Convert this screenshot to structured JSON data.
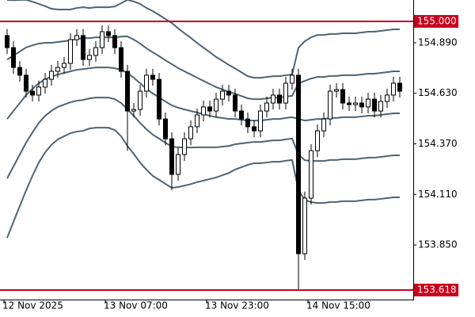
{
  "chart_data": {
    "type": "candlestick",
    "categories": [
      "12 Nov 2025",
      null,
      null,
      null,
      null,
      null,
      null,
      null,
      null,
      null,
      null,
      null,
      null,
      null,
      null,
      null,
      "13 Nov 07:00",
      null,
      null,
      null,
      null,
      null,
      null,
      null,
      null,
      null,
      null,
      null,
      null,
      null,
      null,
      null,
      "13 Nov 23:00",
      null,
      null,
      null,
      null,
      null,
      null,
      null,
      null,
      null,
      null,
      null,
      null,
      null,
      null,
      null,
      "14 Nov 15:00",
      null,
      null,
      null,
      null,
      null,
      null,
      null,
      null,
      null,
      null,
      null,
      null,
      null,
      null
    ],
    "open": [
      154.927,
      154.865,
      154.763,
      154.723,
      154.641,
      154.621,
      154.662,
      154.702,
      154.743,
      154.763,
      154.784,
      154.906,
      154.927,
      154.804,
      154.825,
      154.865,
      154.947,
      154.927,
      154.865,
      154.743,
      154.539,
      154.547,
      154.641,
      154.723,
      154.702,
      154.498,
      154.396,
      154.213,
      154.315,
      154.396,
      154.458,
      154.519,
      154.56,
      154.539,
      154.6,
      154.641,
      154.621,
      154.539,
      154.498,
      154.458,
      154.437,
      154.539,
      154.58,
      154.621,
      154.58,
      154.682,
      154.723,
      153.805,
      154.091,
      154.335,
      154.437,
      154.498,
      154.641,
      154.649,
      154.58,
      154.572,
      154.58,
      154.56,
      154.6,
      154.539,
      154.588,
      154.621,
      154.682
    ],
    "high": [
      154.96,
      154.898,
      154.796,
      154.756,
      154.674,
      154.695,
      154.735,
      154.776,
      154.796,
      154.817,
      154.939,
      154.96,
      154.96,
      154.858,
      154.898,
      154.98,
      154.98,
      154.96,
      154.898,
      154.776,
      154.58,
      154.674,
      154.756,
      154.756,
      154.735,
      154.531,
      154.429,
      154.348,
      154.429,
      154.491,
      154.552,
      154.593,
      154.593,
      154.633,
      154.674,
      154.674,
      154.654,
      154.572,
      154.531,
      154.491,
      154.572,
      154.613,
      154.654,
      154.654,
      154.715,
      154.756,
      154.756,
      154.124,
      154.368,
      154.47,
      154.531,
      154.674,
      154.682,
      154.682,
      154.613,
      154.613,
      154.613,
      154.633,
      154.633,
      154.621,
      154.654,
      154.715,
      154.715
    ],
    "low": [
      154.832,
      154.73,
      154.69,
      154.608,
      154.588,
      154.588,
      154.629,
      154.669,
      154.71,
      154.73,
      154.751,
      154.873,
      154.771,
      154.771,
      154.792,
      154.832,
      154.894,
      154.832,
      154.71,
      154.335,
      154.506,
      154.514,
      154.608,
      154.669,
      154.465,
      154.363,
      154.132,
      154.18,
      154.282,
      154.363,
      154.425,
      154.486,
      154.506,
      154.506,
      154.567,
      154.588,
      154.506,
      154.465,
      154.425,
      154.404,
      154.404,
      154.506,
      154.547,
      154.547,
      154.547,
      154.649,
      153.622,
      153.773,
      154.058,
      154.302,
      154.404,
      154.465,
      154.608,
      154.547,
      154.539,
      154.539,
      154.527,
      154.527,
      154.506,
      154.506,
      154.555,
      154.588,
      154.608
    ],
    "close": [
      154.865,
      154.763,
      154.723,
      154.641,
      154.621,
      154.662,
      154.702,
      154.743,
      154.763,
      154.784,
      154.906,
      154.927,
      154.804,
      154.825,
      154.865,
      154.947,
      154.927,
      154.865,
      154.743,
      154.539,
      154.547,
      154.641,
      154.723,
      154.702,
      154.498,
      154.396,
      154.213,
      154.315,
      154.396,
      154.458,
      154.519,
      154.56,
      154.539,
      154.6,
      154.641,
      154.621,
      154.539,
      154.498,
      154.458,
      154.437,
      154.539,
      154.58,
      154.621,
      154.58,
      154.682,
      154.723,
      153.805,
      154.091,
      154.335,
      154.437,
      154.498,
      154.641,
      154.649,
      154.58,
      154.572,
      154.58,
      154.56,
      154.6,
      154.539,
      154.588,
      154.621,
      154.682,
      154.641
    ],
    "up_color": "#ffffff",
    "down_color": "#000000",
    "bands": [
      {
        "color": "#4f6472",
        "values": [
          155.11,
          155.109,
          155.11,
          155.111,
          155.101,
          155.09,
          155.078,
          155.065,
          155.061,
          155.061,
          155.061,
          155.069,
          155.073,
          155.069,
          155.073,
          155.073,
          155.073,
          155.077,
          155.093,
          155.111,
          155.102,
          155.09,
          155.069,
          155.053,
          155.033,
          155.012,
          154.992,
          154.964,
          154.939,
          154.915,
          154.889,
          154.865,
          154.841,
          154.817,
          154.797,
          154.776,
          154.758,
          154.738,
          154.718,
          154.71,
          154.71,
          154.714,
          154.718,
          154.718,
          154.723,
          154.727,
          154.864,
          154.898,
          154.918,
          154.93,
          154.93,
          154.935,
          154.935,
          154.939,
          154.939,
          154.939,
          154.943,
          154.947,
          154.947,
          154.951,
          154.955,
          154.959,
          154.959
        ]
      },
      {
        "color": "#4f6472",
        "values": [
          154.804,
          154.824,
          154.845,
          154.866,
          154.877,
          154.886,
          154.89,
          154.89,
          154.894,
          154.898,
          154.902,
          154.91,
          154.914,
          154.914,
          154.918,
          154.918,
          154.918,
          154.918,
          154.922,
          154.923,
          154.906,
          154.886,
          154.861,
          154.841,
          154.821,
          154.8,
          154.78,
          154.76,
          154.743,
          154.727,
          154.71,
          154.694,
          154.678,
          154.662,
          154.65,
          154.637,
          154.628,
          154.616,
          154.604,
          154.6,
          154.6,
          154.604,
          154.608,
          154.608,
          154.613,
          154.617,
          154.681,
          154.694,
          154.706,
          154.714,
          154.714,
          154.719,
          154.719,
          154.723,
          154.723,
          154.723,
          154.727,
          154.731,
          154.731,
          154.735,
          154.739,
          154.743,
          154.743
        ]
      },
      {
        "color": "#4f6472",
        "values": [
          154.498,
          154.539,
          154.58,
          154.621,
          154.653,
          154.682,
          154.702,
          154.715,
          154.727,
          154.735,
          154.743,
          154.751,
          154.755,
          154.759,
          154.763,
          154.763,
          154.763,
          154.759,
          154.751,
          154.735,
          154.71,
          154.682,
          154.653,
          154.629,
          154.609,
          154.588,
          154.568,
          154.556,
          154.547,
          154.539,
          154.531,
          154.523,
          154.515,
          154.507,
          154.503,
          154.498,
          154.498,
          154.494,
          154.49,
          154.49,
          154.49,
          154.494,
          154.498,
          154.498,
          154.503,
          154.507,
          154.498,
          154.49,
          154.494,
          154.498,
          154.498,
          154.503,
          154.503,
          154.507,
          154.507,
          154.507,
          154.511,
          154.515,
          154.515,
          154.519,
          154.523,
          154.527,
          154.527
        ]
      },
      {
        "color": "#4f6472",
        "values": [
          154.192,
          154.254,
          154.315,
          154.376,
          154.429,
          154.478,
          154.514,
          154.54,
          154.56,
          154.572,
          154.584,
          154.592,
          154.596,
          154.604,
          154.608,
          154.608,
          154.608,
          154.6,
          154.58,
          154.547,
          154.514,
          154.478,
          154.445,
          154.417,
          154.397,
          154.376,
          154.356,
          154.352,
          154.351,
          154.351,
          154.352,
          154.352,
          154.352,
          154.352,
          154.356,
          154.359,
          154.368,
          154.372,
          154.376,
          154.38,
          154.38,
          154.384,
          154.388,
          154.388,
          154.393,
          154.397,
          154.315,
          154.286,
          154.282,
          154.282,
          154.282,
          154.287,
          154.287,
          154.291,
          154.291,
          154.291,
          154.295,
          154.299,
          154.299,
          154.303,
          154.307,
          154.311,
          154.311
        ]
      },
      {
        "color": "#4f6472",
        "values": [
          153.886,
          153.969,
          154.05,
          154.131,
          154.205,
          154.274,
          154.326,
          154.365,
          154.393,
          154.409,
          154.425,
          154.433,
          154.437,
          154.449,
          154.453,
          154.453,
          154.453,
          154.441,
          154.409,
          154.359,
          154.318,
          154.274,
          154.237,
          154.205,
          154.185,
          154.164,
          154.144,
          154.148,
          154.155,
          154.163,
          154.173,
          154.181,
          154.189,
          154.197,
          154.209,
          154.22,
          154.238,
          154.25,
          154.262,
          154.27,
          154.27,
          154.274,
          154.278,
          154.278,
          154.283,
          154.287,
          154.132,
          154.082,
          154.07,
          154.066,
          154.066,
          154.071,
          154.071,
          154.075,
          154.075,
          154.075,
          154.079,
          154.083,
          154.083,
          154.087,
          154.091,
          154.095,
          154.095
        ]
      }
    ],
    "levels": [
      {
        "value": 155.0,
        "label": "155.000",
        "color": "#c8001e"
      },
      {
        "value": 153.618,
        "label": "153.618",
        "color": "#c8001e"
      }
    ],
    "ylim": [
      153.569,
      155.11
    ],
    "yticks": [
      {
        "value": 154.89,
        "label": "154.890"
      },
      {
        "value": 154.63,
        "label": "154.630"
      },
      {
        "value": 154.37,
        "label": "154.370"
      },
      {
        "value": 154.11,
        "label": "154.110"
      },
      {
        "value": 153.85,
        "label": "153.850"
      }
    ]
  }
}
